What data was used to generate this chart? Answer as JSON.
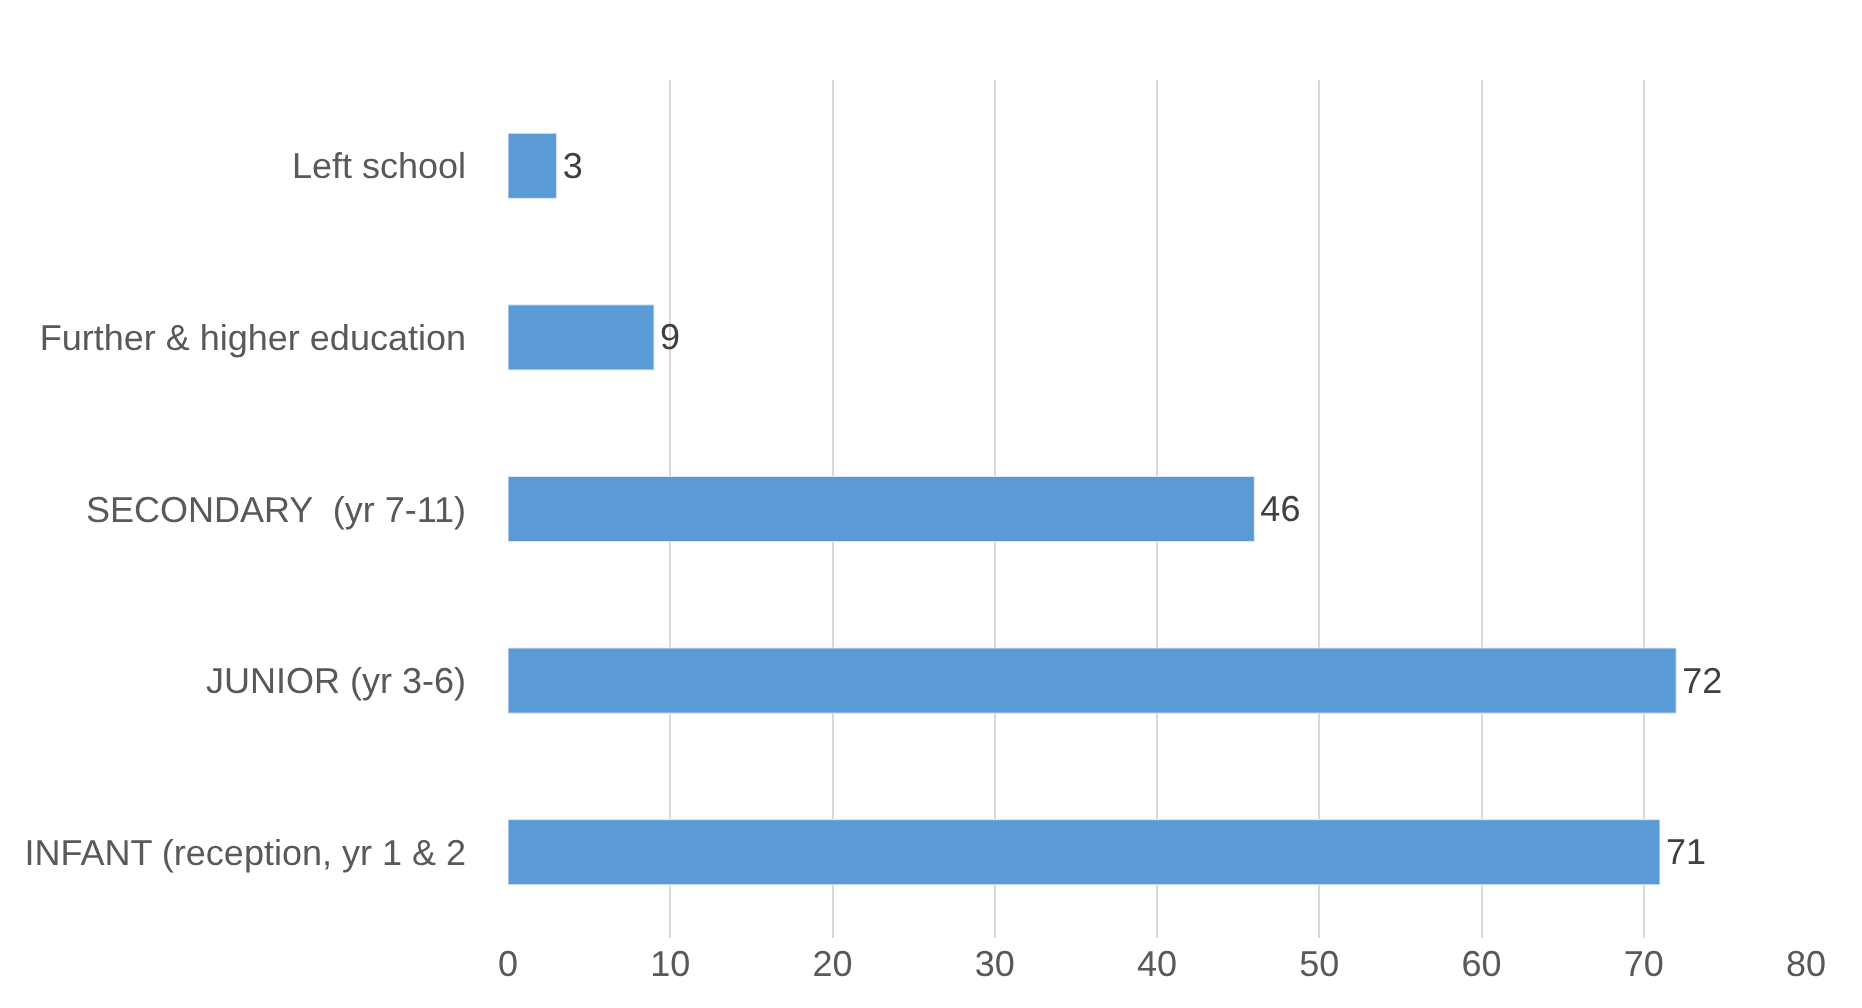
{
  "chart_data": {
    "type": "bar",
    "orientation": "horizontal",
    "categories": [
      "Left school",
      "Further & higher education",
      "SECONDARY  (yr 7-11)",
      "JUNIOR (yr 3-6)",
      "INFANT (reception, yr 1 & 2"
    ],
    "values": [
      3,
      9,
      46,
      72,
      71
    ],
    "color": "#5b9bd5",
    "xlim": [
      0,
      80
    ],
    "xticks": [
      0,
      10,
      20,
      30,
      40,
      50,
      60,
      70,
      80
    ],
    "grid": "x",
    "data_labels": true,
    "legend": false
  }
}
